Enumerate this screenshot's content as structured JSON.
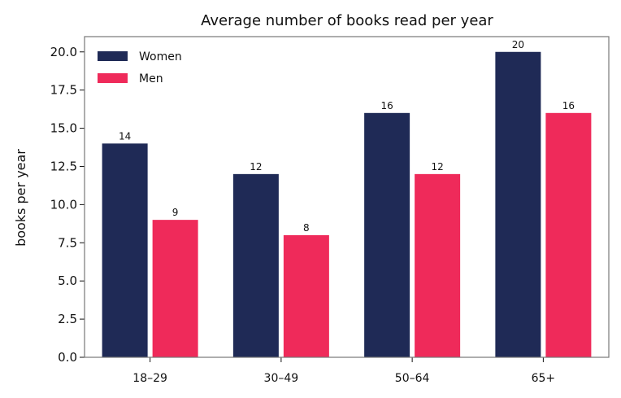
{
  "chart_data": {
    "type": "bar",
    "title": "Average number of books read per year",
    "xlabel": "",
    "ylabel": "books per year",
    "categories": [
      "18–29",
      "30–49",
      "50–64",
      "65+"
    ],
    "series": [
      {
        "name": "Women",
        "values": [
          14,
          12,
          16,
          20
        ],
        "color": "#1f2a56"
      },
      {
        "name": "Men",
        "values": [
          9,
          8,
          12,
          16
        ],
        "color": "#ef2a5a"
      }
    ],
    "ylim": [
      0,
      21
    ],
    "yticks": [
      "0.0",
      "2.5",
      "5.0",
      "7.5",
      "10.0",
      "12.5",
      "15.0",
      "17.5",
      "20.0"
    ],
    "grid": false,
    "legend_position": "top-left",
    "data_labels": true
  }
}
